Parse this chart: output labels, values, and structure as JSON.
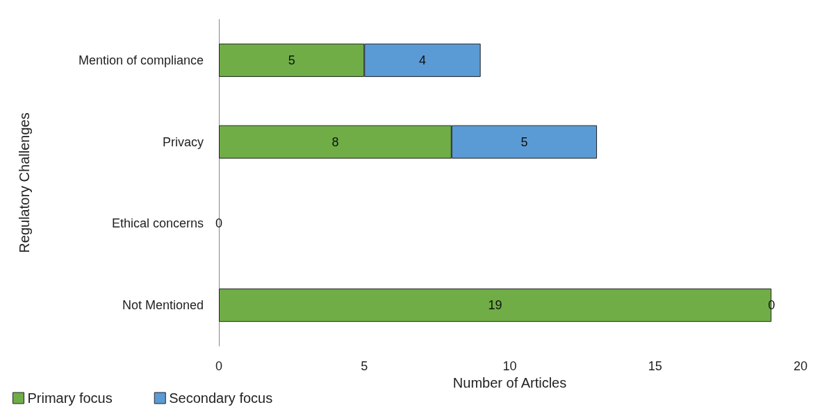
{
  "chart_data": {
    "type": "bar",
    "orientation": "horizontal",
    "stacked": true,
    "xlabel": "Number of Articles",
    "ylabel": "Regulatory Challenges",
    "categories": [
      "Mention of compliance",
      "Privacy",
      "Ethical concerns",
      "Not Mentioned"
    ],
    "series": [
      {
        "name": "Primary focus",
        "color": "#70ad47",
        "values": [
          5,
          8,
          0,
          19
        ],
        "value_labels": [
          "5",
          "8",
          "0",
          "19"
        ]
      },
      {
        "name": "Secondary focus",
        "color": "#5b9bd5",
        "values": [
          4,
          5,
          0,
          0
        ],
        "value_labels": [
          "4",
          "5",
          null,
          "0"
        ]
      }
    ],
    "xlim": [
      0,
      20
    ],
    "xticks": [
      0,
      5,
      10,
      15,
      20
    ],
    "grid": false,
    "legend": "bottom left"
  }
}
